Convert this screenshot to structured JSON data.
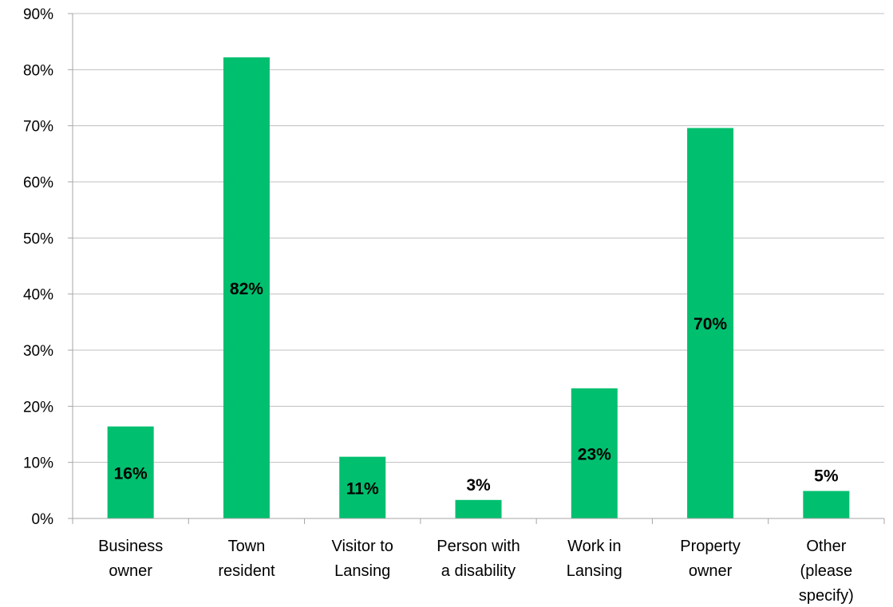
{
  "chart_data": {
    "type": "bar",
    "categories": [
      [
        "Business",
        "owner"
      ],
      [
        "Town",
        "resident"
      ],
      [
        "Visitor to",
        "Lansing"
      ],
      [
        "Person with",
        "a disability"
      ],
      [
        "Work in",
        "Lansing"
      ],
      [
        "Property",
        "owner"
      ],
      [
        "Other",
        "(please",
        "specify)"
      ]
    ],
    "values": [
      16.4,
      82.2,
      11.0,
      3.3,
      23.2,
      69.6,
      4.9
    ],
    "data_labels": [
      "16%",
      "82%",
      "11%",
      "3%",
      "23%",
      "70%",
      "5%"
    ],
    "ylim": [
      0,
      90
    ],
    "yticks": [
      0,
      10,
      20,
      30,
      40,
      50,
      60,
      70,
      80,
      90
    ],
    "ytick_labels": [
      "0%",
      "10%",
      "20%",
      "30%",
      "40%",
      "50%",
      "60%",
      "70%",
      "80%",
      "90%"
    ],
    "grid": true,
    "legend": "none",
    "title": "",
    "xlabel": "",
    "ylabel": "",
    "bar_color": "#00BF6F",
    "grid_color": "#BFBFBF",
    "axis_color": "#A6A6A6"
  }
}
